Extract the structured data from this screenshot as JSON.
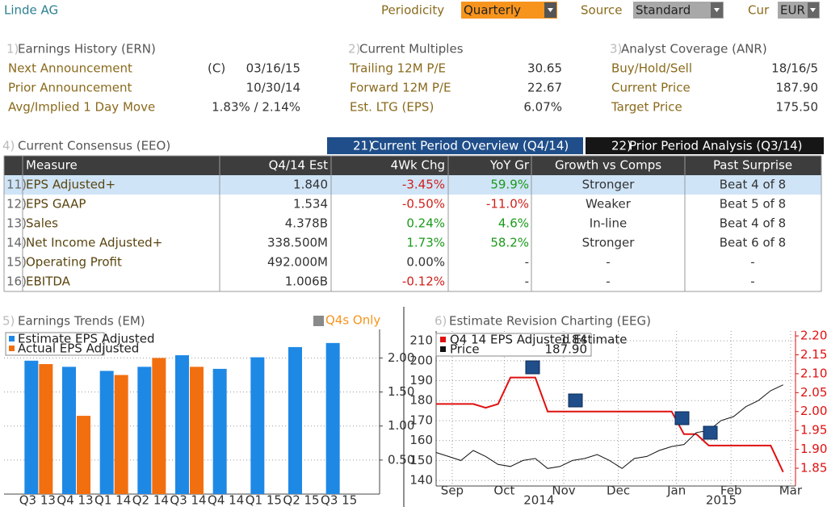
{
  "header": {
    "title": "Linde AG",
    "periodicity_label": "Periodicity",
    "periodicity": "Quarterly",
    "source_label": "Source",
    "source": "Standard",
    "currency_label": "Cur",
    "currency": "EUR"
  },
  "sections": [
    {
      "number": "1)",
      "title": "Earnings History (ERN)",
      "rows": [
        {
          "label": "Next Announcement",
          "flag": "(C)",
          "value": "03/16/15"
        },
        {
          "label": "Prior Announcement",
          "value": "10/30/14"
        },
        {
          "label": "Avg/Implied 1 Day Move",
          "value": "1.83% / 2.14%"
        }
      ]
    },
    {
      "number": "2)",
      "title": "Current Multiples",
      "rows": [
        {
          "label": "Trailing 12M P/E",
          "value": "30.65"
        },
        {
          "label": "Forward 12M P/E",
          "value": "22.67"
        },
        {
          "label": "Est. LTG (EPS)",
          "value": "6.07%"
        }
      ]
    },
    {
      "number": "3)",
      "title": "Analyst Coverage (ANR)",
      "rows": [
        {
          "label": "Buy/Hold/Sell",
          "value": "18/16/5"
        },
        {
          "label": "Current Price",
          "value": "187.90"
        },
        {
          "label": "Target Price",
          "value": "175.50"
        }
      ]
    }
  ],
  "consensus": {
    "number": "4)",
    "title": "Current Consensus (EEO)",
    "tabs": [
      {
        "number": "21)",
        "label": "Current Period Overview (Q4/14)"
      },
      {
        "number": "22)",
        "label": "Prior Period Analysis (Q3/14)"
      }
    ],
    "columns": [
      "Measure",
      "Q4/14 Est",
      "4Wk Chg",
      "YoY Gr",
      "Growth vs Comps",
      "Past Surprise"
    ],
    "rows": [
      {
        "number": "11)",
        "cells": [
          "EPS Adjusted+",
          "1.840",
          "-3.45%",
          "59.9%",
          "Stronger",
          "Beat 4 of 8"
        ]
      },
      {
        "number": "12)",
        "cells": [
          "EPS GAAP",
          "1.534",
          "-0.50%",
          "-11.0%",
          "Weaker",
          "Beat 5 of 8"
        ]
      },
      {
        "number": "13)",
        "cells": [
          "Sales",
          "4.378B",
          "0.24%",
          "4.6%",
          "In-line",
          "Beat 4 of 8"
        ]
      },
      {
        "number": "14)",
        "cells": [
          "Net Income Adjusted+",
          "338.500M",
          "1.73%",
          "58.2%",
          "Stronger",
          "Beat 6 of 8"
        ]
      },
      {
        "number": "15)",
        "cells": [
          "Operating Profit",
          "492.000M",
          "0.00%",
          "-",
          "-",
          "-"
        ]
      },
      {
        "number": "16)",
        "cells": [
          "EBITDA",
          "1.006B",
          "-0.12%",
          "-",
          "-",
          "-"
        ]
      }
    ]
  },
  "chart_data": [
    {
      "type": "bar",
      "number": "5)",
      "title": "Earnings Trends (EM)",
      "toggle": "Q4s Only",
      "categories": [
        "Q3 13",
        "Q4 13",
        "Q1 14",
        "Q2 14",
        "Q3 14",
        "Q4 14",
        "Q1 15",
        "Q2 15",
        "Q3 15"
      ],
      "series": [
        {
          "name": "Estimate EPS Adjusted",
          "color": "#1e88e5",
          "values": [
            1.96,
            1.87,
            1.81,
            1.87,
            2.04,
            1.84,
            2.01,
            2.16,
            2.22
          ]
        },
        {
          "name": "Actual EPS Adjusted",
          "color": "#f26f10",
          "values": [
            1.91,
            1.15,
            1.75,
            2.0,
            1.87,
            null,
            null,
            null,
            null
          ]
        }
      ],
      "ylim": [
        0,
        2.42
      ],
      "yticks": [
        {
          "value": 0.5,
          "label": "0.50"
        },
        {
          "value": 1,
          "label": "1.00"
        },
        {
          "value": 1.5,
          "label": "1.50"
        },
        {
          "value": 2,
          "label": "2.00"
        }
      ],
      "grid": true
    },
    {
      "type": "line",
      "number": "6)",
      "title": "Estimate Revision Charting (EEG)",
      "x": [
        0,
        1,
        2,
        3,
        4,
        5,
        6,
        7,
        8,
        9,
        10,
        11,
        12,
        13,
        14,
        15,
        16,
        17,
        18,
        19,
        20,
        21,
        22,
        23,
        24,
        25,
        26,
        27,
        28
      ],
      "series": [
        {
          "name": "Q4 14 EPS Adjusted Estimate",
          "legend_value": "1.84",
          "color": "#e01010",
          "axis": "y2",
          "values": [
            2.02,
            2.02,
            2.02,
            2.02,
            2.01,
            2.02,
            2.09,
            2.09,
            2.09,
            2.0,
            2.0,
            2.0,
            2.0,
            2.0,
            2.0,
            2.0,
            2.0,
            2.0,
            2.0,
            2.0,
            1.94,
            1.94,
            1.91,
            1.91,
            1.91,
            1.91,
            1.91,
            1.91,
            1.84
          ]
        },
        {
          "name": "Price",
          "legend_value": "187.90",
          "color": "#111111",
          "values": [
            154,
            152,
            150,
            155,
            152,
            148,
            147,
            150,
            151,
            146,
            147,
            150,
            151,
            153,
            150,
            146,
            151,
            152,
            155,
            157,
            158,
            164,
            165,
            170,
            172,
            177,
            180,
            185,
            187.9
          ]
        }
      ],
      "xlim": [
        0,
        29
      ],
      "xticks": [
        {
          "value": 1.3,
          "label": "Sep"
        },
        {
          "value": 5.5,
          "label": "Oct"
        },
        {
          "value": 10.3,
          "label": "Nov"
        },
        {
          "value": 14.7,
          "label": "Dec"
        },
        {
          "value": 19.4,
          "label": "Jan"
        },
        {
          "value": 23.8,
          "label": "Feb"
        },
        {
          "value": 28.6,
          "label": "Mar"
        }
      ],
      "year_ticks": [
        {
          "value": 8.3,
          "label": "2014"
        },
        {
          "value": 23,
          "label": "2015"
        }
      ],
      "ylim": [
        137.2,
        214.9
      ],
      "yticks": [
        140,
        150,
        160,
        170,
        180,
        190,
        200,
        210
      ],
      "y2lim": [
        1.803,
        2.213
      ],
      "y2ticks": [
        {
          "value": 1.85,
          "label": "1.85"
        },
        {
          "value": 1.9,
          "label": "1.90"
        },
        {
          "value": 1.95,
          "label": "1.95"
        },
        {
          "value": 2,
          "label": "2.00"
        },
        {
          "value": 2.05,
          "label": "2.05"
        },
        {
          "value": 2.1,
          "label": "2.10"
        },
        {
          "value": 2.15,
          "label": "2.15"
        },
        {
          "value": 2.2,
          "label": "2.20"
        }
      ],
      "grid": true
    }
  ]
}
